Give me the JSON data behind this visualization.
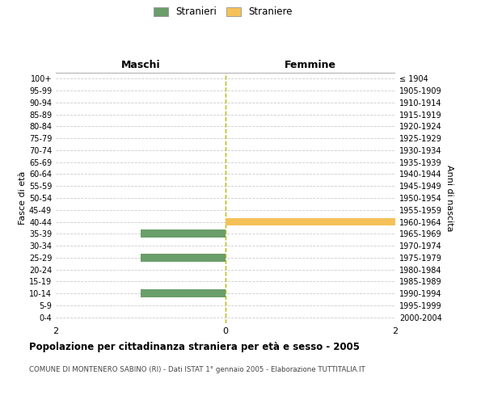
{
  "age_groups": [
    "100+",
    "95-99",
    "90-94",
    "85-89",
    "80-84",
    "75-79",
    "70-74",
    "65-69",
    "60-64",
    "55-59",
    "50-54",
    "45-49",
    "40-44",
    "35-39",
    "30-34",
    "25-29",
    "20-24",
    "15-19",
    "10-14",
    "5-9",
    "0-4"
  ],
  "birth_years": [
    "≤ 1904",
    "1905-1909",
    "1910-1914",
    "1915-1919",
    "1920-1924",
    "1925-1929",
    "1930-1934",
    "1935-1939",
    "1940-1944",
    "1945-1949",
    "1950-1954",
    "1955-1959",
    "1960-1964",
    "1965-1969",
    "1970-1974",
    "1975-1979",
    "1980-1984",
    "1985-1989",
    "1990-1994",
    "1995-1999",
    "2000-2004"
  ],
  "males": [
    0,
    0,
    0,
    0,
    0,
    0,
    0,
    0,
    0,
    0,
    0,
    0,
    0,
    -1,
    0,
    -1,
    0,
    0,
    -1,
    0,
    0
  ],
  "females": [
    0,
    0,
    0,
    0,
    0,
    0,
    0,
    0,
    0,
    0,
    0,
    0,
    2,
    0,
    0,
    0,
    0,
    0,
    0,
    0,
    0
  ],
  "male_color": "#6a9e6a",
  "female_color": "#f5c158",
  "title_main": "Popolazione per cittadinanza straniera per età e sesso - 2005",
  "title_sub": "COMUNE DI MONTENERO SABINO (RI) - Dati ISTAT 1° gennaio 2005 - Elaborazione TUTTITALIA.IT",
  "legend_male": "Stranieri",
  "legend_female": "Straniere",
  "xlabel_left": "Maschi",
  "xlabel_right": "Femmine",
  "ylabel_left": "Fasce di età",
  "ylabel_right": "Anni di nascita",
  "xlim": [
    -2,
    2
  ],
  "xticks": [
    -2,
    0,
    2
  ],
  "background_color": "#ffffff",
  "grid_color": "#cccccc",
  "bar_height": 0.65
}
